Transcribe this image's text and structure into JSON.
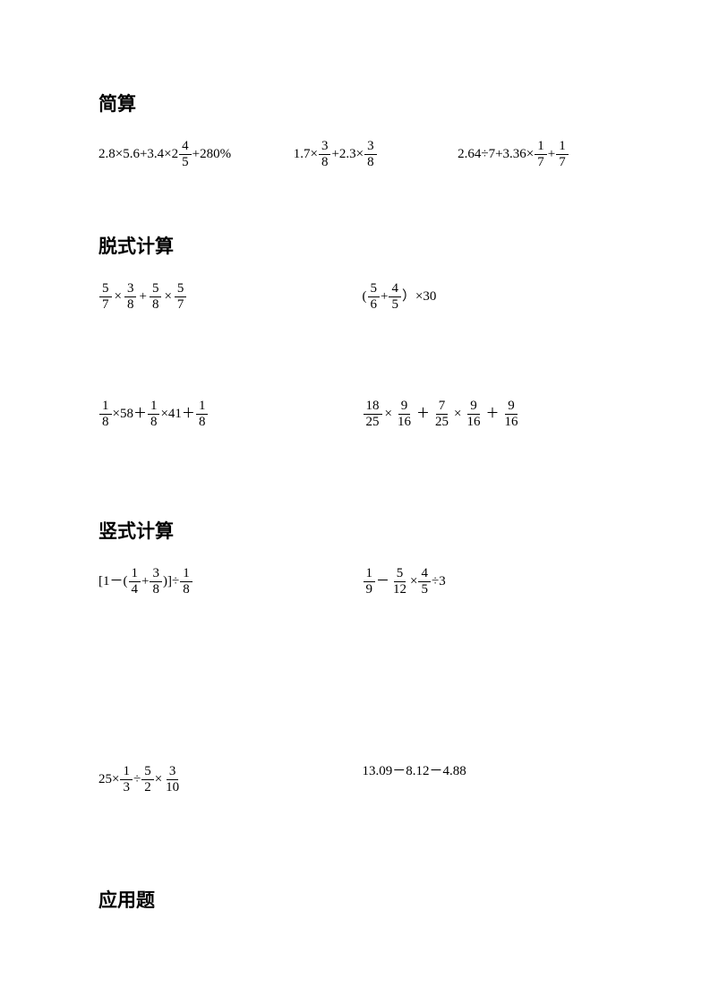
{
  "headings": {
    "s1": "简算",
    "s2": "脱式计算",
    "s3": "竖式计算",
    "s4": "应用题"
  },
  "s1": {
    "p1": {
      "a": "2.8×5.6+3.4×2",
      "f_num": "4",
      "f_den": "5",
      "b": " +280%"
    },
    "p2": {
      "a": "1.7×",
      "f1_num": "3",
      "f1_den": "8",
      "b": " +2.3×",
      "f2_num": "3",
      "f2_den": "8"
    },
    "p3": {
      "a": "2.64÷7+3.36×",
      "f1_num": "1",
      "f1_den": "7",
      "b": " +",
      "f2_num": "1",
      "f2_den": "7"
    }
  },
  "s2": {
    "p1": {
      "f1_num": "5",
      "f1_den": "7",
      "op1": "×",
      "f2_num": "3",
      "f2_den": "8",
      "op2": "+",
      "f3_num": "5",
      "f3_den": "8",
      "op3": "×",
      "f4_num": "5",
      "f4_den": "7"
    },
    "p2": {
      "a": "(",
      "f1_num": "5",
      "f1_den": "6",
      "b": " +",
      "f2_num": "4",
      "f2_den": "5",
      "c": " ）×30"
    },
    "p3": {
      "f1_num": "1",
      "f1_den": "8",
      "a": "×58＋",
      "f2_num": "1",
      "f2_den": "8",
      "b": "×41＋",
      "f3_num": "1",
      "f3_den": "8"
    },
    "p4": {
      "f1_num": "18",
      "f1_den": "25",
      "op1": "×",
      "f2_num": "9",
      "f2_den": "16",
      "op2": "＋",
      "f3_num": "7",
      "f3_den": "25",
      "op3": "×",
      "f4_num": "9",
      "f4_den": "16",
      "op4": "＋",
      "f5_num": "9",
      "f5_den": "16"
    }
  },
  "s3": {
    "p1": {
      "a": "[1－(",
      "f1_num": "1",
      "f1_den": "4",
      "b": "+",
      "f2_num": "3",
      "f2_den": "8",
      "c": ")]÷",
      "f3_num": "1",
      "f3_den": "8"
    },
    "p2": {
      "f1_num": "1",
      "f1_den": "9",
      "a": "－",
      "f2_num": "5",
      "f2_den": "12",
      "b": "×",
      "f3_num": "4",
      "f3_den": "5",
      "c": "÷3"
    },
    "p3": {
      "a": "25×",
      "f1_num": "1",
      "f1_den": "3",
      "b": " ÷",
      "f2_num": "5",
      "f2_den": "2",
      "c": " ×",
      "f3_num": "3",
      "f3_den": "10"
    },
    "p4": {
      "a": "13.09－8.12－4.88"
    }
  }
}
